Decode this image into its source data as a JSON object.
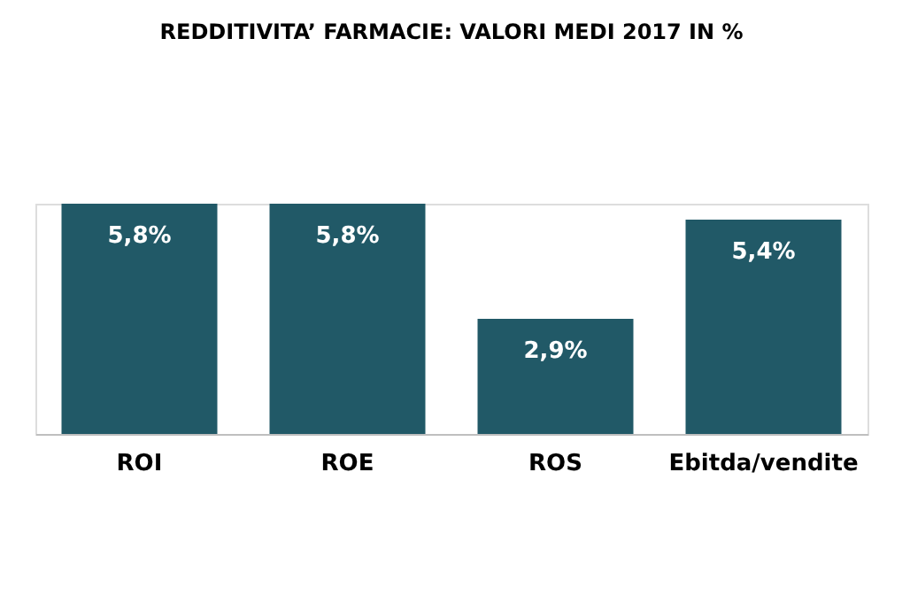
{
  "chart_data": {
    "type": "bar",
    "title": "REDDITIVITA’ FARMACIE: VALORI MEDI 2017 IN %",
    "categories": [
      "ROI",
      "ROE",
      "ROS",
      "Ebitda/vendite"
    ],
    "values": [
      5.8,
      5.8,
      2.9,
      5.4
    ],
    "value_labels": [
      "5,8%",
      "5,8%",
      "2,9%",
      "5,4%"
    ],
    "color": "#215967"
  }
}
